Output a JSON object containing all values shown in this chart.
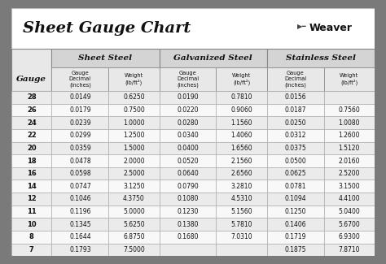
{
  "title": "Sheet Gauge Chart",
  "bg_outer": "#7a7a7a",
  "bg_white": "#ffffff",
  "bg_title": "#ffffff",
  "bg_header": "#d4d4d4",
  "bg_subheader": "#e8e8e8",
  "bg_row_even": "#ebebeb",
  "bg_row_odd": "#f8f8f8",
  "gauges": [
    28,
    26,
    24,
    22,
    20,
    18,
    16,
    14,
    12,
    11,
    10,
    8,
    7
  ],
  "sheet_steel": {
    "decimal": [
      "0.0149",
      "0.0179",
      "0.0239",
      "0.0299",
      "0.0359",
      "0.0478",
      "0.0598",
      "0.0747",
      "0.1046",
      "0.1196",
      "0.1345",
      "0.1644",
      "0.1793"
    ],
    "weight": [
      "0.6250",
      "0.7500",
      "1.0000",
      "1.2500",
      "1.5000",
      "2.0000",
      "2.5000",
      "3.1250",
      "4.3750",
      "5.0000",
      "5.6250",
      "6.8750",
      "7.5000"
    ]
  },
  "galvanized_steel": {
    "decimal": [
      "0.0190",
      "0.0220",
      "0.0280",
      "0.0340",
      "0.0400",
      "0.0520",
      "0.0640",
      "0.0790",
      "0.1080",
      "0.1230",
      "0.1380",
      "0.1680",
      ""
    ],
    "weight": [
      "0.7810",
      "0.9060",
      "1.1560",
      "1.4060",
      "1.6560",
      "2.1560",
      "2.6560",
      "3.2810",
      "4.5310",
      "5.1560",
      "5.7810",
      "7.0310",
      ""
    ]
  },
  "stainless_steel": {
    "decimal": [
      "0.0156",
      "0.0187",
      "0.0250",
      "0.0312",
      "0.0375",
      "0.0500",
      "0.0625",
      "0.0781",
      "0.1094",
      "0.1250",
      "0.1406",
      "0.1719",
      "0.1875"
    ],
    "weight": [
      "",
      "0.7560",
      "1.0080",
      "1.2600",
      "1.5120",
      "2.0160",
      "2.5200",
      "3.1500",
      "4.4100",
      "5.0400",
      "5.6700",
      "6.9300",
      "7.8710"
    ]
  }
}
